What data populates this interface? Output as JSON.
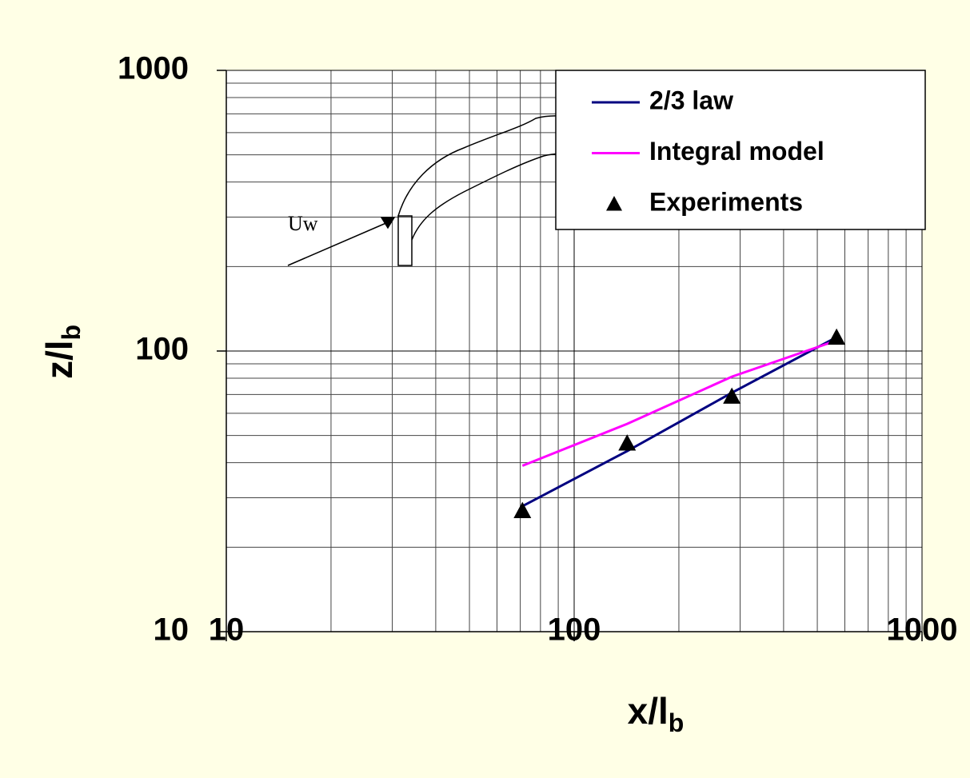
{
  "chart_data": {
    "type": "line",
    "xlabel": {
      "main": "x/l",
      "sub": "b"
    },
    "ylabel": {
      "main": "z/l",
      "sub": "b"
    },
    "x": [
      71,
      142,
      284,
      568
    ],
    "series": [
      {
        "name": "2/3 law",
        "color": "#000080",
        "style": "line",
        "values": [
          28,
          44,
          71,
          112
        ]
      },
      {
        "name": "Integral model",
        "color": "#ff00ff",
        "style": "line",
        "values": [
          39,
          55,
          81,
          109
        ]
      },
      {
        "name": "Experiments",
        "color": "#000000",
        "style": "markers",
        "values": [
          27,
          47,
          69,
          112
        ]
      }
    ],
    "xlim": [
      10,
      1000
    ],
    "ylim": [
      10,
      1000
    ],
    "xticks": [
      10,
      100,
      1000
    ],
    "yticks": [
      10,
      100,
      1000
    ],
    "log_x": true,
    "log_y": true,
    "grid": true,
    "minor_grid": true,
    "legend": "upper right",
    "annotations": [
      "Uw"
    ]
  }
}
